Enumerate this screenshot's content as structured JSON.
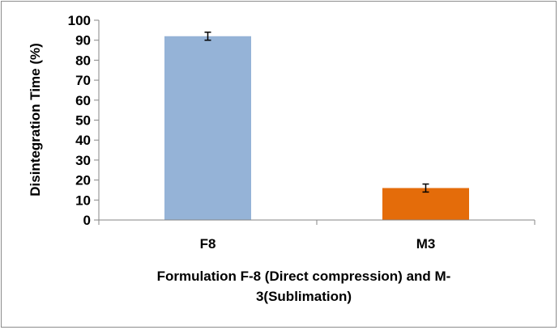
{
  "chart_data": {
    "type": "bar",
    "categories": [
      "F8",
      "M3"
    ],
    "values": [
      92,
      16
    ],
    "errors": [
      2,
      2
    ],
    "colors": [
      "#95b3d7",
      "#e46c0a"
    ],
    "ylabel": "Disintegration Time (%)",
    "xlabel_lines": [
      "Formulation F-8 (Direct compression) and M-",
      "3(Sublimation)"
    ],
    "ylim": [
      0,
      100
    ],
    "yticks": [
      "0",
      "10",
      "20",
      "30",
      "40",
      "50",
      "60",
      "70",
      "80",
      "90",
      "100"
    ],
    "grid": false,
    "legend": "none"
  }
}
